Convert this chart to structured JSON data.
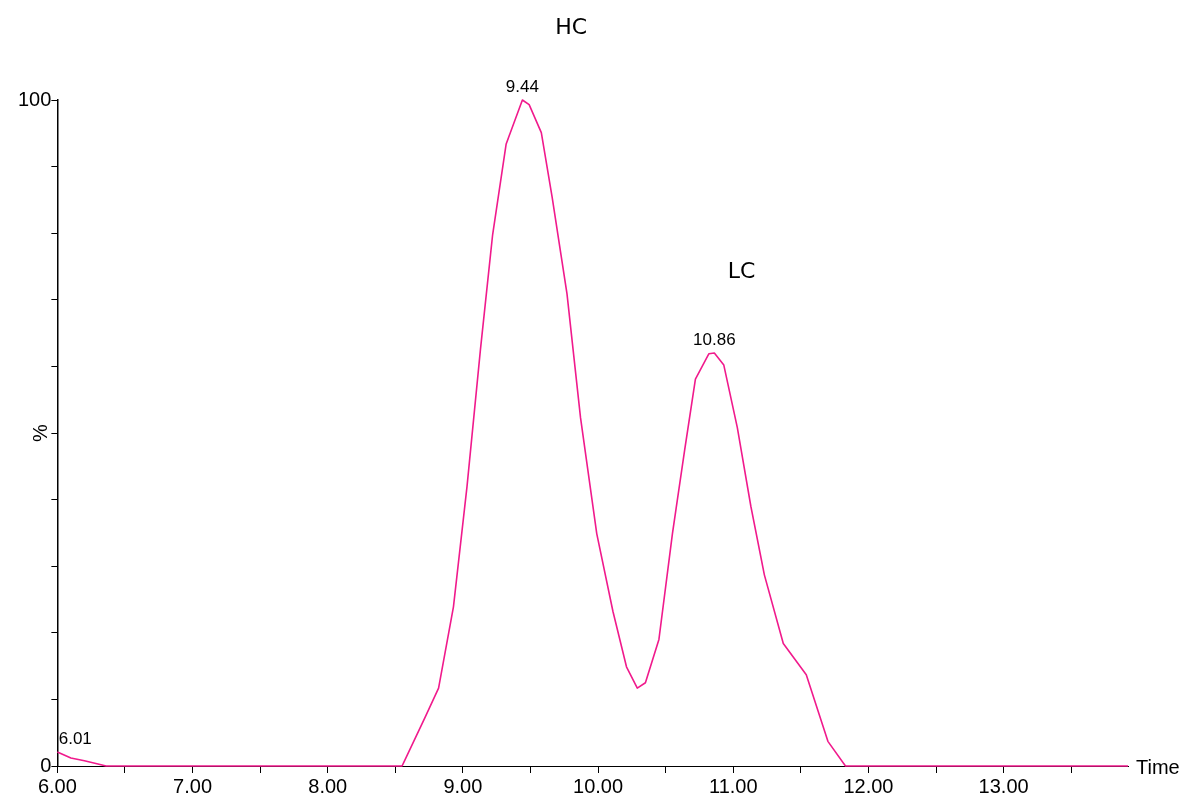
{
  "chart_data": {
    "type": "line",
    "title": "HC",
    "xlabel": "Time",
    "ylabel": "%",
    "color": "#f01a8c",
    "marker": "none",
    "x": [
      6.0,
      6.1,
      6.2,
      6.3,
      6.36,
      8.55,
      8.72,
      8.82,
      8.93,
      9.03,
      9.13,
      9.22,
      9.32,
      9.44,
      9.49,
      9.58,
      9.66,
      9.77,
      9.87,
      9.99,
      10.11,
      10.21,
      10.29,
      10.35,
      10.45,
      10.55,
      10.64,
      10.72,
      10.82,
      10.86,
      10.93,
      11.03,
      11.13,
      11.23,
      11.37,
      11.54,
      11.7,
      11.83,
      13.92
    ],
    "values": [
      2.1,
      1.2,
      0.8,
      0.3,
      0,
      0,
      7.3,
      11.7,
      23.9,
      41.9,
      62.6,
      79.8,
      93.4,
      100,
      99.3,
      95.1,
      85.4,
      70.9,
      52.3,
      34.9,
      23.2,
      14.9,
      11.7,
      12.5,
      19,
      34.9,
      47.4,
      58.1,
      61.9,
      62,
      60.2,
      50.8,
      39,
      28.7,
      18.4,
      13.7,
      3.7,
      0,
      0
    ],
    "xlim": [
      6.0,
      13.92
    ],
    "xticks": [
      {
        "value": 6,
        "label": "6.00"
      },
      {
        "value": 6.5,
        "label": null
      },
      {
        "value": 7,
        "label": "7.00"
      },
      {
        "value": 7.5,
        "label": null
      },
      {
        "value": 8,
        "label": "8.00"
      },
      {
        "value": 8.5,
        "label": null
      },
      {
        "value": 9,
        "label": "9.00"
      },
      {
        "value": 9.5,
        "label": null
      },
      {
        "value": 10,
        "label": "10.00"
      },
      {
        "value": 10.5,
        "label": null
      },
      {
        "value": 11,
        "label": "11.00"
      },
      {
        "value": 11.5,
        "label": null
      },
      {
        "value": 12,
        "label": "12.00"
      },
      {
        "value": 12.5,
        "label": null
      },
      {
        "value": 13,
        "label": "13.00"
      },
      {
        "value": 13.5,
        "label": null
      }
    ],
    "ylim": [
      0,
      100
    ],
    "yticks": [
      0,
      {
        "value": 10,
        "label": null
      },
      {
        "value": 20,
        "label": null
      },
      {
        "value": 30,
        "label": null
      },
      {
        "value": 40,
        "label": null
      },
      {
        "value": 50,
        "label": null
      },
      {
        "value": 60,
        "label": null
      },
      {
        "value": 70,
        "label": null
      },
      {
        "value": 80,
        "label": null
      },
      {
        "value": 90,
        "label": null
      },
      100
    ],
    "annotations": [
      {
        "text": "9.44",
        "x": 9.44,
        "y": 100
      },
      {
        "text": "10.86",
        "x": 10.86,
        "y": 62
      },
      {
        "text": "6.01",
        "x": 6.01,
        "y": 2.1
      },
      "LC"
    ]
  }
}
